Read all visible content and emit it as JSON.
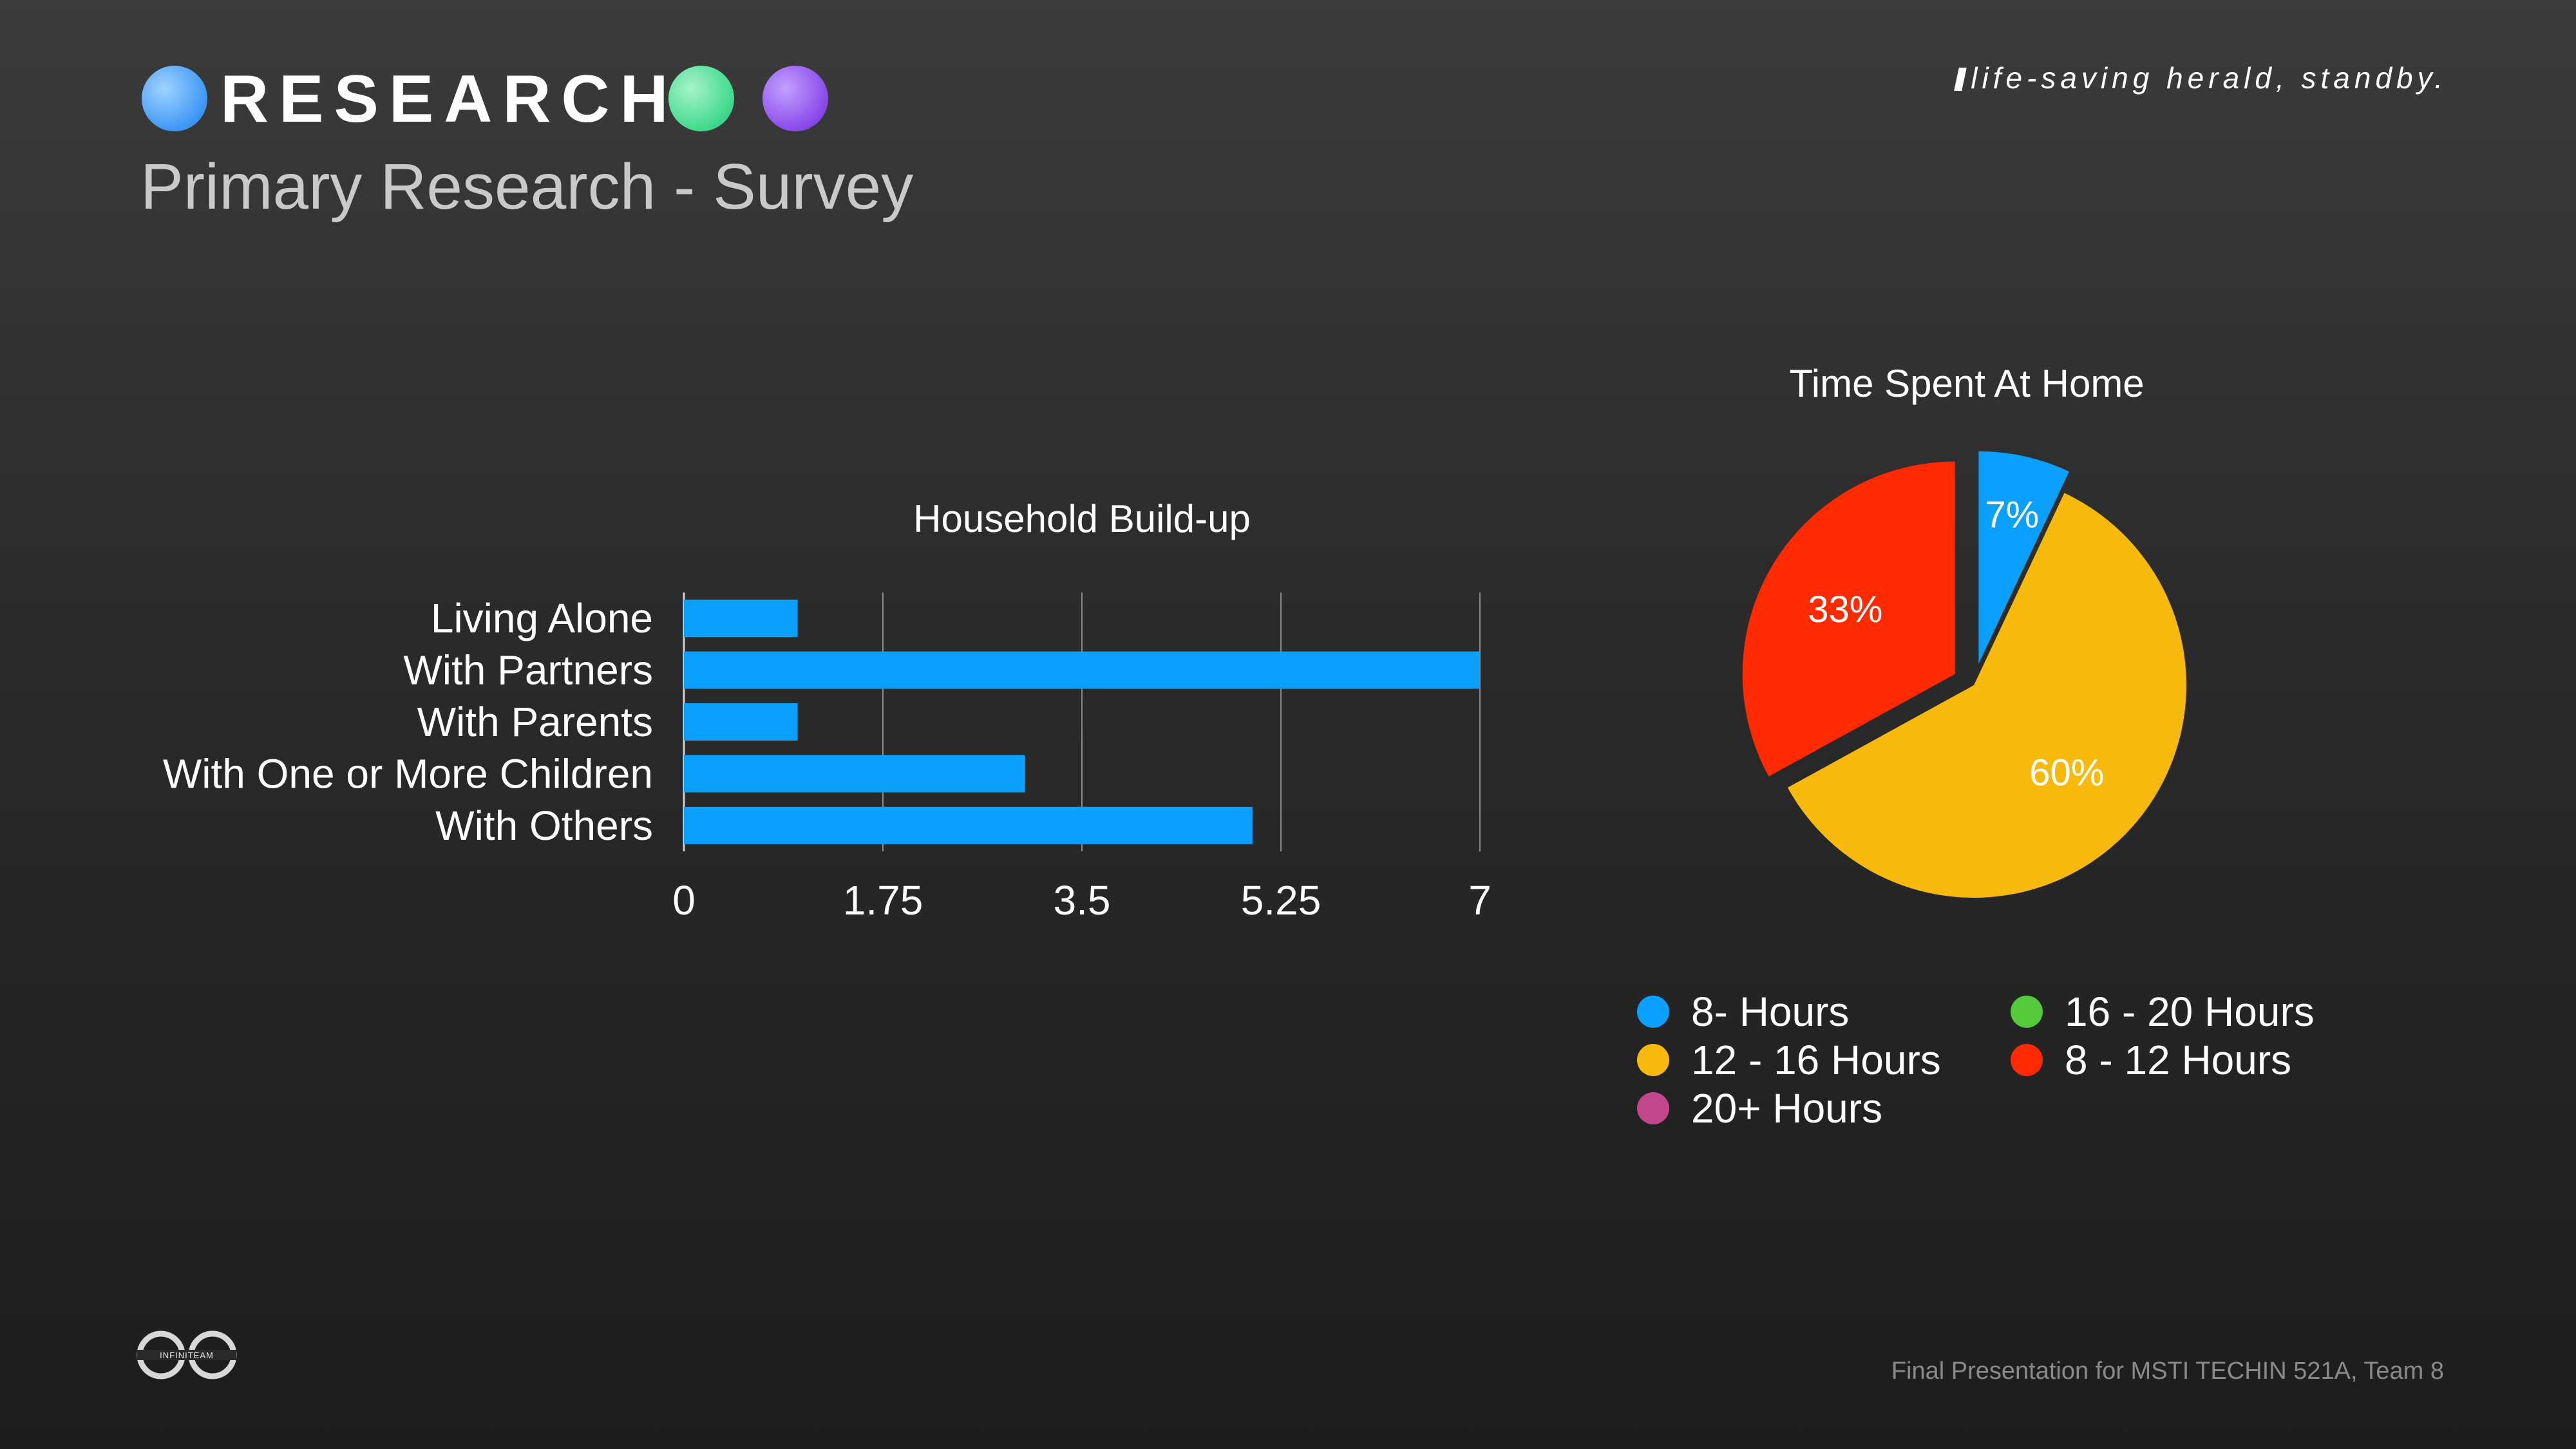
{
  "header": {
    "section_title": "RESEARCH",
    "subtitle": "Primary Research - Survey",
    "tagline": "life-saving herald, standby."
  },
  "footer": {
    "text": "Final Presentation for MSTI TECHIN 521A, Team 8",
    "logo_text": "INFINITEAM"
  },
  "colors": {
    "dot_blue": "#3e97f5",
    "dot_green": "#3fd98c",
    "dot_purple": "#8a49ea"
  },
  "chart_data": [
    {
      "type": "bar",
      "orientation": "horizontal",
      "title": "Household Build-up",
      "categories": [
        "Living Alone",
        "With Partners",
        "With Parents",
        "With One or More Children",
        "With Others"
      ],
      "values": [
        1,
        7,
        1,
        3,
        5
      ],
      "xlim": [
        0,
        7
      ],
      "xticks": [
        "0",
        "1.75",
        "3.5",
        "5.25",
        "7"
      ],
      "grid": true,
      "color": "#0aa0ff"
    },
    {
      "type": "pie",
      "title": "Time Spent At Home",
      "slices": [
        {
          "label": "8- Hours",
          "value": 7,
          "display": "7%",
          "color": "#0aa0ff",
          "exploded": true
        },
        {
          "label": "12 - 16 Hours",
          "value": 60,
          "display": "60%",
          "color": "#f7b90c",
          "exploded": false
        },
        {
          "label": "8 - 12 Hours",
          "value": 33,
          "display": "33%",
          "color": "#ff2a00",
          "exploded": true
        }
      ],
      "legend": [
        {
          "label": "8- Hours",
          "color": "#0aa0ff"
        },
        {
          "label": "16 - 20 Hours",
          "color": "#54c93a"
        },
        {
          "label": "12 - 16 Hours",
          "color": "#f7b90c"
        },
        {
          "label": "8 - 12 Hours",
          "color": "#ff2a00"
        },
        {
          "label": "20+ Hours",
          "color": "#c2468a"
        }
      ],
      "legend_position": "bottom"
    }
  ]
}
